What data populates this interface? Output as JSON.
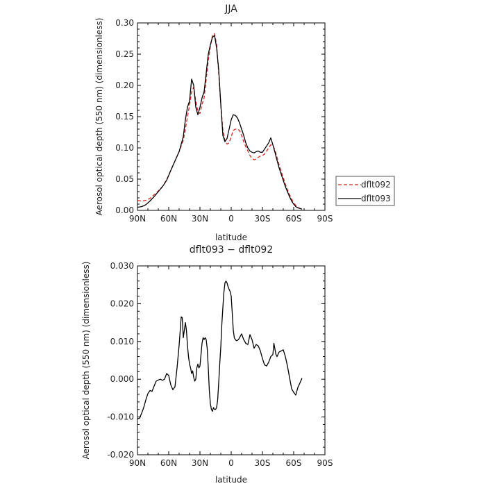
{
  "chart_data": [
    {
      "type": "line",
      "title": "JJA",
      "xlabel": "latitude",
      "ylabel": "Aerosol optical depth (550 nm) (dimensionless)",
      "xlim": [
        90,
        -90
      ],
      "ylim": [
        0.0,
        0.3
      ],
      "xticks": [
        90,
        60,
        30,
        0,
        -30,
        -60,
        -90
      ],
      "xtick_labels": [
        "90N",
        "60N",
        "30N",
        "0",
        "30S",
        "60S",
        "90S"
      ],
      "yticks": [
        0.0,
        0.05,
        0.1,
        0.15,
        0.2,
        0.25,
        0.3
      ],
      "ytick_labels": [
        "0.00",
        "0.05",
        "0.10",
        "0.15",
        "0.20",
        "0.25",
        "0.30"
      ],
      "grid": false,
      "legend_position": "outside-right",
      "series": [
        {
          "name": "dflt092",
          "color": "#e0201b",
          "dash": "dashed",
          "x": [
            90,
            86,
            82,
            78,
            74,
            70,
            66,
            62,
            58,
            54,
            50,
            46,
            44,
            42,
            40,
            38,
            36,
            34,
            32,
            30,
            28,
            26,
            24,
            22,
            20,
            18,
            16,
            14,
            12,
            10,
            8,
            6,
            4,
            2,
            0,
            -2,
            -4,
            -6,
            -8,
            -10,
            -12,
            -14,
            -16,
            -18,
            -20,
            -22,
            -24,
            -26,
            -28,
            -30,
            -32,
            -34,
            -36,
            -38,
            -40,
            -42,
            -44,
            -46,
            -48,
            -50,
            -52,
            -54,
            -56,
            -58,
            -60,
            -62,
            -64,
            -66,
            -68
          ],
          "y": [
            0.016,
            0.015,
            0.016,
            0.019,
            0.025,
            0.031,
            0.038,
            0.049,
            0.064,
            0.079,
            0.094,
            0.112,
            0.13,
            0.15,
            0.168,
            0.19,
            0.197,
            0.175,
            0.158,
            0.155,
            0.17,
            0.18,
            0.21,
            0.24,
            0.262,
            0.28,
            0.283,
            0.265,
            0.22,
            0.17,
            0.128,
            0.112,
            0.106,
            0.108,
            0.118,
            0.128,
            0.13,
            0.13,
            0.128,
            0.12,
            0.11,
            0.102,
            0.095,
            0.088,
            0.083,
            0.081,
            0.082,
            0.085,
            0.087,
            0.088,
            0.09,
            0.095,
            0.1,
            0.105,
            0.104,
            0.097,
            0.085,
            0.073,
            0.062,
            0.052,
            0.042,
            0.033,
            0.025,
            0.018,
            0.012,
            0.008,
            0.005,
            0.003,
            0.002
          ]
        },
        {
          "name": "dflt093",
          "color": "#000000",
          "dash": "solid",
          "x": [
            90,
            86,
            82,
            78,
            74,
            70,
            66,
            62,
            58,
            54,
            50,
            46,
            44,
            42,
            40,
            38,
            36,
            34,
            32,
            30,
            28,
            26,
            24,
            22,
            20,
            18,
            16,
            14,
            12,
            10,
            8,
            6,
            4,
            2,
            0,
            -2,
            -4,
            -6,
            -8,
            -10,
            -12,
            -14,
            -16,
            -18,
            -20,
            -22,
            -24,
            -26,
            -28,
            -30,
            -32,
            -34,
            -36,
            -38,
            -40,
            -42,
            -44,
            -46,
            -48,
            -50,
            -52,
            -54,
            -56,
            -58,
            -60,
            -62,
            -64,
            -66,
            -68
          ],
          "y": [
            0.005,
            0.006,
            0.009,
            0.015,
            0.022,
            0.03,
            0.038,
            0.048,
            0.064,
            0.079,
            0.094,
            0.118,
            0.145,
            0.165,
            0.175,
            0.21,
            0.2,
            0.165,
            0.153,
            0.165,
            0.18,
            0.19,
            0.22,
            0.25,
            0.265,
            0.277,
            0.28,
            0.26,
            0.225,
            0.17,
            0.12,
            0.11,
            0.115,
            0.13,
            0.145,
            0.153,
            0.152,
            0.148,
            0.14,
            0.13,
            0.12,
            0.108,
            0.1,
            0.095,
            0.093,
            0.092,
            0.094,
            0.095,
            0.093,
            0.093,
            0.098,
            0.103,
            0.108,
            0.116,
            0.105,
            0.093,
            0.08,
            0.068,
            0.058,
            0.048,
            0.038,
            0.03,
            0.022,
            0.015,
            0.01,
            0.006,
            0.004,
            0.003,
            0.002
          ]
        }
      ]
    },
    {
      "type": "line",
      "title": "dflt093 − dflt092",
      "xlabel": "latitude",
      "ylabel": "Aerosol optical depth (550 nm) (dimensionless)",
      "xlim": [
        90,
        -90
      ],
      "ylim": [
        -0.02,
        0.03
      ],
      "xticks": [
        90,
        60,
        30,
        0,
        -30,
        -60,
        -90
      ],
      "xtick_labels": [
        "90N",
        "60N",
        "30N",
        "0",
        "30S",
        "60S",
        "90S"
      ],
      "yticks": [
        -0.02,
        -0.01,
        0.0,
        0.01,
        0.02,
        0.03
      ],
      "ytick_labels": [
        "-0.020",
        "-0.010",
        "0.000",
        "0.010",
        "0.020",
        "0.030"
      ],
      "grid": false,
      "series": [
        {
          "color": "#000000",
          "dash": "solid",
          "x": [
            90,
            88,
            86,
            84,
            82,
            80,
            78,
            76,
            74,
            72,
            70,
            68,
            66,
            64,
            62,
            60,
            58,
            56,
            54,
            52,
            50,
            48,
            47,
            46,
            45,
            44,
            43,
            42,
            41,
            40,
            39,
            38,
            37,
            36,
            35,
            34,
            33,
            32,
            31,
            30,
            29,
            28,
            27,
            26,
            25,
            24,
            23,
            22,
            21,
            20,
            19,
            18,
            17,
            16,
            15,
            14,
            13,
            12,
            11,
            10,
            9,
            8,
            7,
            6,
            5,
            4,
            3,
            2,
            1,
            0,
            -1,
            -2,
            -3,
            -4,
            -5,
            -6,
            -7,
            -8,
            -9,
            -10,
            -12,
            -14,
            -16,
            -18,
            -20,
            -22,
            -24,
            -26,
            -28,
            -30,
            -32,
            -34,
            -36,
            -38,
            -40,
            -41,
            -42,
            -43,
            -44,
            -46,
            -48,
            -50,
            -52,
            -54,
            -56,
            -58,
            -60,
            -62,
            -64,
            -66,
            -68
          ],
          "y": [
            -0.0105,
            -0.0103,
            -0.009,
            -0.0075,
            -0.0055,
            -0.0038,
            -0.003,
            -0.0032,
            -0.0018,
            -0.0005,
            -0.0002,
            0.0,
            -0.0003,
            0.0,
            0.0015,
            0.001,
            -0.0015,
            -0.0028,
            -0.002,
            0.003,
            0.009,
            0.0165,
            0.0163,
            0.011,
            0.013,
            0.015,
            0.013,
            0.009,
            0.006,
            0.004,
            0.003,
            0.0015,
            0.0022,
            0.0005,
            -0.0005,
            0.0,
            0.003,
            0.004,
            0.003,
            0.0035,
            0.0065,
            0.0095,
            0.011,
            0.0105,
            0.011,
            0.0105,
            0.008,
            0.003,
            -0.003,
            -0.0065,
            -0.008,
            -0.0085,
            -0.0075,
            -0.008,
            -0.008,
            -0.0075,
            -0.0055,
            -0.001,
            0.004,
            0.0085,
            0.0145,
            0.019,
            0.023,
            0.0255,
            0.026,
            0.0255,
            0.0245,
            0.0238,
            0.0232,
            0.022,
            0.0175,
            0.013,
            0.011,
            0.0105,
            0.0102,
            0.0103,
            0.0105,
            0.011,
            0.0115,
            0.012,
            0.0105,
            0.0095,
            0.0092,
            0.0118,
            0.0105,
            0.0082,
            0.0092,
            0.0088,
            0.0075,
            0.0055,
            0.0038,
            0.0035,
            0.0045,
            0.006,
            0.0065,
            0.0095,
            0.008,
            0.0065,
            0.006,
            0.0072,
            0.0075,
            0.0078,
            0.006,
            0.0035,
            0.0005,
            -0.0025,
            -0.0035,
            -0.0042,
            -0.0022,
            -0.001,
            0.0003
          ]
        }
      ]
    }
  ]
}
